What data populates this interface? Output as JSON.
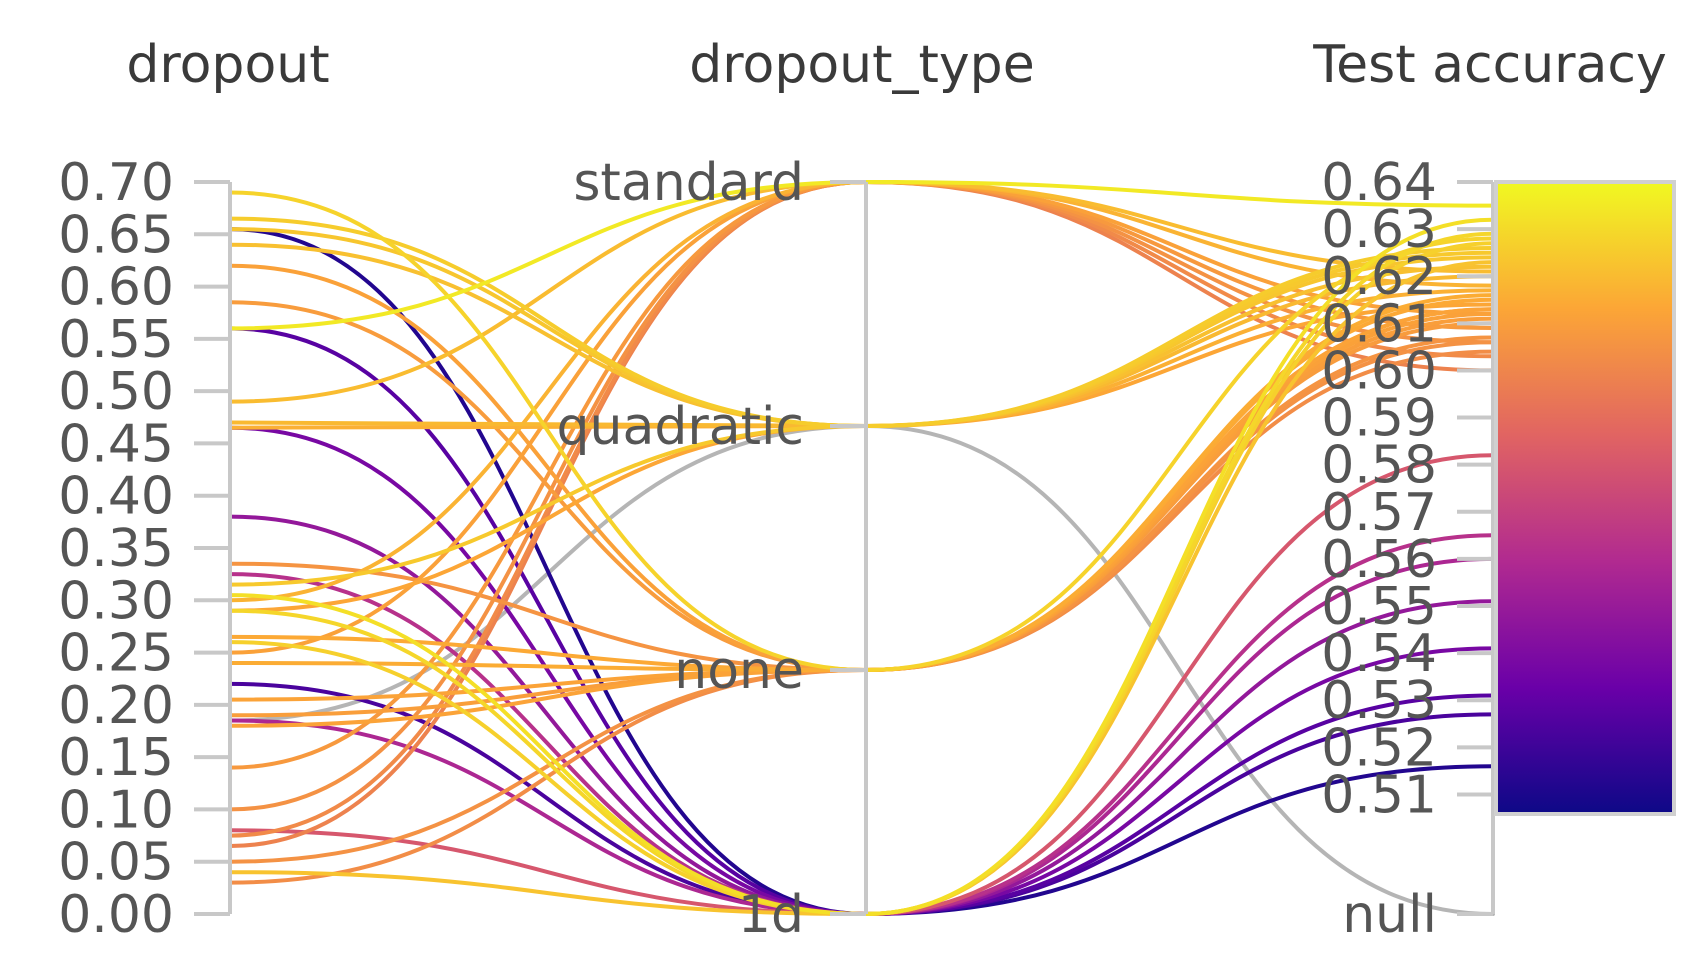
{
  "chart_data": {
    "type": "parallel_coordinates",
    "axes": [
      {
        "name": "dropout",
        "kind": "numeric",
        "range": [
          0,
          0.7
        ],
        "ticks": [
          "0.00",
          "0.05",
          "0.10",
          "0.15",
          "0.20",
          "0.25",
          "0.30",
          "0.35",
          "0.40",
          "0.45",
          "0.50",
          "0.55",
          "0.60",
          "0.65",
          "0.70"
        ]
      },
      {
        "name": "dropout_type",
        "kind": "categorical",
        "categories": [
          "1d",
          "none",
          "quadratic",
          "standard"
        ]
      },
      {
        "name": "Test accuracy",
        "kind": "numeric",
        "range": [
          0.505,
          0.64
        ],
        "has_null": true,
        "ticks": [
          "0.64",
          "0.63",
          "0.62",
          "0.61",
          "0.60",
          "0.59",
          "0.58",
          "0.57",
          "0.56",
          "0.55",
          "0.54",
          "0.53",
          "0.52",
          "0.51"
        ],
        "null_label": "null"
      }
    ],
    "colorscale": {
      "name": "plasma",
      "min": 0.51,
      "max": 0.64,
      "stops": [
        "#0d0887",
        "#6a00a8",
        "#b12a90",
        "#e16462",
        "#fca636",
        "#f0f921"
      ]
    },
    "null_color": "#b5b5b5",
    "records": [
      {
        "dropout": 0.56,
        "type": "standard",
        "acc": 0.635
      },
      {
        "dropout": 0.49,
        "type": "standard",
        "acc": 0.621
      },
      {
        "dropout": 0.3,
        "type": "standard",
        "acc": 0.618
      },
      {
        "dropout": 0.25,
        "type": "standard",
        "acc": 0.612
      },
      {
        "dropout": 0.14,
        "type": "standard",
        "acc": 0.609
      },
      {
        "dropout": 0.1,
        "type": "standard",
        "acc": 0.606
      },
      {
        "dropout": 0.075,
        "type": "standard",
        "acc": 0.603
      },
      {
        "dropout": 0.065,
        "type": "standard",
        "acc": 0.6
      },
      {
        "dropout": 0.665,
        "type": "quadratic",
        "acc": 0.626
      },
      {
        "dropout": 0.655,
        "type": "quadratic",
        "acc": 0.624
      },
      {
        "dropout": 0.64,
        "type": "quadratic",
        "acc": 0.622
      },
      {
        "dropout": 0.47,
        "type": "quadratic",
        "acc": 0.62
      },
      {
        "dropout": 0.465,
        "type": "quadratic",
        "acc": 0.617
      },
      {
        "dropout": 0.315,
        "type": "quadratic",
        "acc": 0.625
      },
      {
        "dropout": 0.29,
        "type": "quadratic",
        "acc": 0.614
      },
      {
        "dropout": 0.185,
        "type": "quadratic",
        "acc": null
      },
      {
        "dropout": 0.69,
        "type": "none",
        "acc": 0.628
      },
      {
        "dropout": 0.62,
        "type": "none",
        "acc": 0.612
      },
      {
        "dropout": 0.585,
        "type": "none",
        "acc": 0.61
      },
      {
        "dropout": 0.335,
        "type": "none",
        "acc": 0.607
      },
      {
        "dropout": 0.265,
        "type": "none",
        "acc": 0.615
      },
      {
        "dropout": 0.24,
        "type": "none",
        "acc": 0.616
      },
      {
        "dropout": 0.205,
        "type": "none",
        "acc": 0.613
      },
      {
        "dropout": 0.19,
        "type": "none",
        "acc": 0.611
      },
      {
        "dropout": 0.18,
        "type": "none",
        "acc": 0.613
      },
      {
        "dropout": 0.05,
        "type": "none",
        "acc": 0.606
      },
      {
        "dropout": 0.03,
        "type": "none",
        "acc": 0.604
      },
      {
        "dropout": 0.655,
        "type": "1d",
        "acc": 0.516
      },
      {
        "dropout": 0.56,
        "type": "1d",
        "acc": 0.531
      },
      {
        "dropout": 0.465,
        "type": "1d",
        "acc": 0.541
      },
      {
        "dropout": 0.38,
        "type": "1d",
        "acc": 0.551
      },
      {
        "dropout": 0.325,
        "type": "1d",
        "acc": 0.565
      },
      {
        "dropout": 0.305,
        "type": "1d",
        "acc": 0.632
      },
      {
        "dropout": 0.29,
        "type": "1d",
        "acc": 0.629
      },
      {
        "dropout": 0.26,
        "type": "1d",
        "acc": 0.627
      },
      {
        "dropout": 0.22,
        "type": "1d",
        "acc": 0.527
      },
      {
        "dropout": 0.185,
        "type": "1d",
        "acc": 0.56
      },
      {
        "dropout": 0.08,
        "type": "1d",
        "acc": 0.582
      },
      {
        "dropout": 0.04,
        "type": "1d",
        "acc": 0.623
      }
    ]
  }
}
